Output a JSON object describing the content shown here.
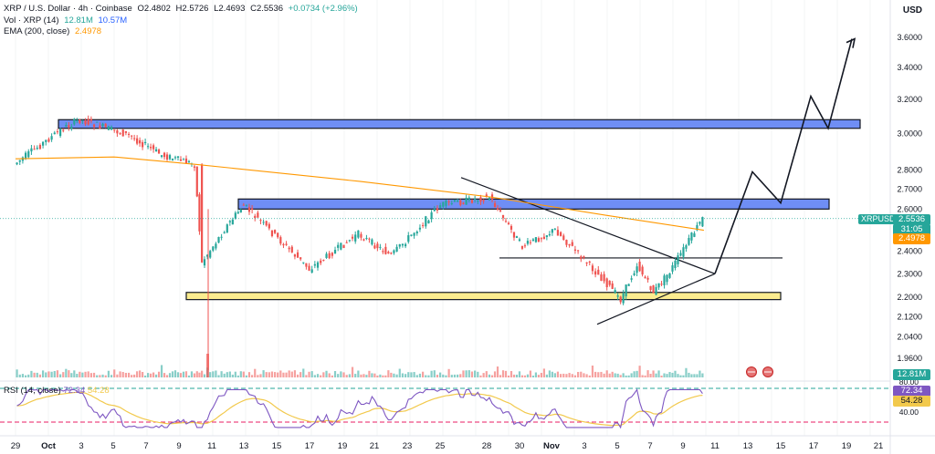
{
  "legend": {
    "title": "XRP / U.S. Dollar · 4h · Coinbase",
    "open": "O2.4802",
    "high": "H2.5726",
    "low": "L2.4693",
    "close": "C2.5536",
    "change": "+0.0734 (+2.96%)",
    "vol_label": "Vol · XRP (14)",
    "vol_value": "12.81M",
    "vol_ma": "10.57M",
    "ema_label": "EMA (200, close)",
    "ema_value": "2.4978"
  },
  "rsi_legend": {
    "label": "RSI (14, close)",
    "value": "72.34",
    "ma": "54.28"
  },
  "currency": "USD",
  "price_axis": [
    "3.6000",
    "3.4000",
    "3.2000",
    "3.0000",
    "2.8000",
    "2.7000",
    "2.6000",
    "2.4000",
    "2.3000",
    "2.2000",
    "2.1200",
    "2.0400",
    "1.9600"
  ],
  "rsi_axis": [
    "80.00",
    "40.00"
  ],
  "badges": {
    "symbol": "XRPUSD",
    "price": "2.5536",
    "countdown": "31:05",
    "ema": "2.4978",
    "volume": "12.81M",
    "rsi": "72.34",
    "rsi_ma": "54.28"
  },
  "time_axis": [
    "29",
    "Oct",
    "3",
    "5",
    "7",
    "9",
    "11",
    "13",
    "15",
    "17",
    "19",
    "21",
    "23",
    "25",
    "28",
    "30",
    "Nov",
    "3",
    "5",
    "7",
    "9",
    "11",
    "13",
    "15",
    "17",
    "19",
    "21"
  ],
  "colors": {
    "up": "#26a69a",
    "down": "#ef5350",
    "ema": "#ff9800",
    "resistance_zone": "#6f8ef5",
    "support_zone": "#fbec8f",
    "rsi": "#7e57c2",
    "rsi_ma": "#f2c94c",
    "rsi_upper": "#26a69a",
    "rsi_lower": "#e91e63"
  },
  "chart_data": {
    "type": "candlestick",
    "timeframe": "4h",
    "ylim": [
      1.92,
      3.68
    ],
    "scale": "log",
    "series": [
      {
        "name": "XRP / U.S. Dollar",
        "type": "candles",
        "key_points": [
          {
            "date": "Sep 29",
            "price": 2.83
          },
          {
            "date": "Oct 2",
            "price": 3.03
          },
          {
            "date": "Oct 3",
            "price": 3.08
          },
          {
            "date": "Oct 6",
            "price": 2.99
          },
          {
            "date": "Oct 8",
            "price": 2.88
          },
          {
            "date": "Oct 10",
            "price": 2.83
          },
          {
            "date": "Oct 10",
            "price": 2.35
          },
          {
            "date": "Oct 12",
            "price": 2.52
          },
          {
            "date": "Oct 13",
            "price": 2.62
          },
          {
            "date": "Oct 17",
            "price": 2.32
          },
          {
            "date": "Oct 20",
            "price": 2.48
          },
          {
            "date": "Oct 22",
            "price": 2.38
          },
          {
            "date": "Oct 25",
            "price": 2.62
          },
          {
            "date": "Oct 28",
            "price": 2.66
          },
          {
            "date": "Oct 30",
            "price": 2.42
          },
          {
            "date": "Nov 1",
            "price": 2.5
          },
          {
            "date": "Nov 4",
            "price": 2.27
          },
          {
            "date": "Nov 5",
            "price": 2.19
          },
          {
            "date": "Nov 6",
            "price": 2.34
          },
          {
            "date": "Nov 7",
            "price": 2.22
          },
          {
            "date": "Nov 8",
            "price": 2.31
          },
          {
            "date": "Nov 10",
            "price": 2.5536
          }
        ]
      },
      {
        "name": "EMA (200, close)",
        "type": "line",
        "points": [
          {
            "date": "Sep 29",
            "price": 2.86
          },
          {
            "date": "Oct 5",
            "price": 2.87
          },
          {
            "date": "Oct 10",
            "price": 2.83
          },
          {
            "date": "Oct 20",
            "price": 2.74
          },
          {
            "date": "Oct 28",
            "price": 2.66
          },
          {
            "date": "Nov 4",
            "price": 2.57
          },
          {
            "date": "Nov 10",
            "price": 2.4978
          }
        ]
      }
    ],
    "annotations": [
      {
        "type": "zone",
        "name": "resistance",
        "from": 3.03,
        "to": 3.08
      },
      {
        "type": "zone",
        "name": "resistance",
        "from": 2.6,
        "to": 2.65
      },
      {
        "type": "zone",
        "name": "support",
        "from": 2.19,
        "to": 2.22
      },
      {
        "type": "line",
        "name": "horizontal",
        "price": 2.37
      },
      {
        "type": "line",
        "name": "descending trendline",
        "from_price": 2.76,
        "to_price": 2.3
      },
      {
        "type": "line",
        "name": "ascending trendline",
        "from_price": 2.09,
        "to_price": 2.3
      },
      {
        "type": "path",
        "name": "projection",
        "points": [
          2.3,
          2.79,
          2.63,
          3.22,
          3.03,
          3.59
        ]
      }
    ],
    "volume": {
      "last": "12.81M",
      "ma": "10.57M"
    },
    "rsi": {
      "last": 72.34,
      "ma": 54.28,
      "levels": [
        70,
        30
      ]
    }
  }
}
